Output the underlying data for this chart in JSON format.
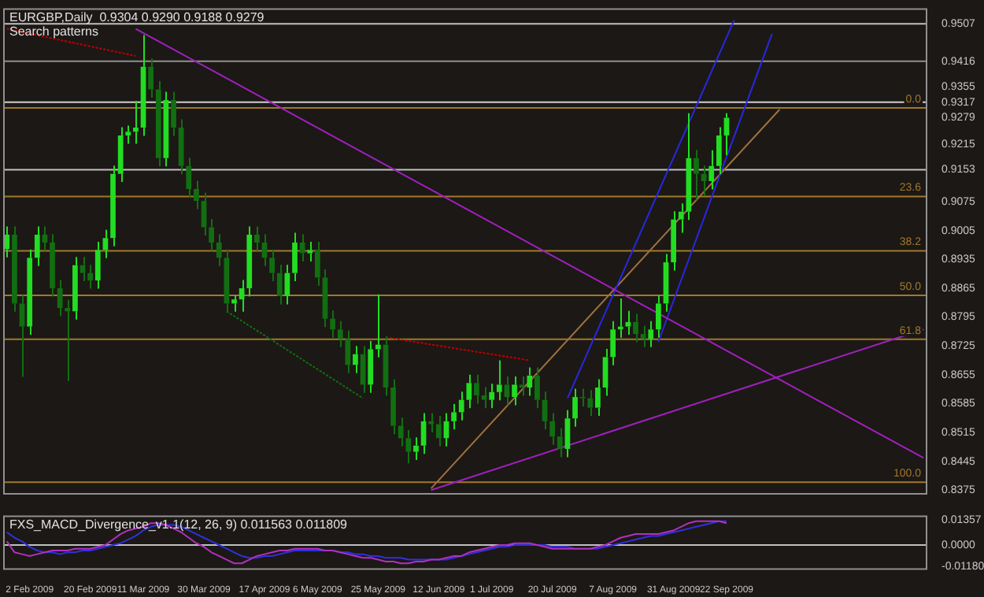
{
  "chart_data": [
    {
      "type": "candlestick",
      "title": "EURGBP,Daily  0.9304 0.9290 0.9188 0.9279",
      "subtitle": "Search patterns",
      "colors": [
        "#22dd22",
        "#116f11",
        "#116f11",
        "#22dd22",
        "#22dd22",
        "#116f11",
        "#116f11",
        "#116f11",
        "#116f11",
        "#22dd22",
        "#116f11",
        "#116f11",
        "#22dd22",
        "#22dd22",
        "#22dd22",
        "#22dd22",
        "#22dd22",
        "#22dd22",
        "#22dd22",
        "#116f11",
        "#116f11",
        "#22dd22",
        "#116f11",
        "#116f11",
        "#116f11",
        "#116f11",
        "#116f11",
        "#116f11",
        "#116f11",
        "#116f11",
        "#22dd22",
        "#22dd22",
        "#22dd22",
        "#116f11",
        "#116f11",
        "#116f11",
        "#116f11",
        "#22dd22",
        "#22dd22",
        "#116f11",
        "#22dd22",
        "#116f11",
        "#116f11",
        "#116f11",
        "#116f11",
        "#116f11",
        "#22dd22",
        "#116f11",
        "#22dd22",
        "#22dd22",
        "#116f11",
        "#116f11",
        "#116f11",
        "#116f11",
        "#22dd22",
        "#22dd22",
        "#116f11",
        "#116f11",
        "#22dd22",
        "#22dd22",
        "#22dd22",
        "#22dd22",
        "#116f11",
        "#116f11",
        "#22dd22",
        "#22dd22",
        "#116f11",
        "#22dd22",
        "#116f11",
        "#22dd22",
        "#116f11",
        "#116f11",
        "#116f11",
        "#116f11",
        "#22dd22",
        "#22dd22",
        "#116f11",
        "#116f11",
        "#22dd22",
        "#22dd22",
        "#22dd22",
        "#22dd22",
        "#22dd22",
        "#116f11",
        "#116f11",
        "#22dd22",
        "#22dd22",
        "#22dd22",
        "#22dd22",
        "#22dd22",
        "#22dd22",
        "#116f11",
        "#116f11",
        "#22dd22",
        "#22dd22",
        "#22dd22",
        null,
        null,
        null,
        null,
        null,
        null,
        null,
        null,
        null,
        null,
        null,
        null,
        null,
        null,
        null,
        null,
        null,
        null,
        null,
        null,
        null,
        null,
        null,
        null,
        null,
        null
      ],
      "tick_labels": "y",
      "ylim": [
        0.8364,
        0.9545
      ],
      "yticks": [
        0.8375,
        0.8445,
        0.8515,
        0.8585,
        0.8655,
        0.8725,
        0.8795,
        0.8865,
        0.8935,
        0.9005,
        0.9075,
        0.9153,
        0.9215,
        0.9279,
        0.9317,
        0.9355,
        0.9416,
        0.9507
      ],
      "ohlc": [
        [
          0.896,
          0.9015,
          0.894,
          0.8995
        ],
        [
          0.8995,
          0.9015,
          0.8808,
          0.8828
        ],
        [
          0.8828,
          0.8848,
          0.865,
          0.8772
        ],
        [
          0.8772,
          0.8959,
          0.8752,
          0.8939
        ],
        [
          0.8939,
          0.9015,
          0.8919,
          0.8995
        ],
        [
          0.8995,
          0.9015,
          0.8956,
          0.8976
        ],
        [
          0.8976,
          0.8996,
          0.8845,
          0.8865
        ],
        [
          0.8865,
          0.8885,
          0.8797,
          0.8817
        ],
        [
          0.8817,
          0.8837,
          0.864,
          0.8809
        ],
        [
          0.8809,
          0.8941,
          0.8789,
          0.8921
        ],
        [
          0.8921,
          0.8941,
          0.8882,
          0.8902
        ],
        [
          0.8902,
          0.8922,
          0.8864,
          0.8884
        ],
        [
          0.8884,
          0.8978,
          0.8864,
          0.8958
        ],
        [
          0.8958,
          0.9007,
          0.8938,
          0.8987
        ],
        [
          0.8987,
          0.9163,
          0.8967,
          0.9143
        ],
        [
          0.9143,
          0.9256,
          0.9123,
          0.9236
        ],
        [
          0.9236,
          0.926,
          0.9216,
          0.9245
        ],
        [
          0.9245,
          0.932,
          0.9216,
          0.9255
        ],
        [
          0.9255,
          0.948,
          0.9235,
          0.9403
        ],
        [
          0.9403,
          0.9423,
          0.9328,
          0.9348
        ],
        [
          0.9348,
          0.9368,
          0.9161,
          0.9181
        ],
        [
          0.9181,
          0.9342,
          0.9161,
          0.9322
        ],
        [
          0.9322,
          0.9342,
          0.9235,
          0.9255
        ],
        [
          0.9255,
          0.9275,
          0.9142,
          0.9162
        ],
        [
          0.9162,
          0.9182,
          0.9086,
          0.9106
        ],
        [
          0.9106,
          0.9126,
          0.9057,
          0.9077
        ],
        [
          0.9077,
          0.9097,
          0.8993,
          0.9013
        ],
        [
          0.9013,
          0.9033,
          0.8956,
          0.8976
        ],
        [
          0.8976,
          0.8996,
          0.8919,
          0.8939
        ],
        [
          0.8939,
          0.8959,
          0.8808,
          0.8828
        ],
        [
          0.8828,
          0.8848,
          0.8808,
          0.8838
        ],
        [
          0.8838,
          0.8885,
          0.8808,
          0.8865
        ],
        [
          0.8865,
          0.9015,
          0.8845,
          0.8995
        ],
        [
          0.8995,
          0.9015,
          0.8956,
          0.8976
        ],
        [
          0.8976,
          0.8996,
          0.8919,
          0.8939
        ],
        [
          0.8939,
          0.8959,
          0.8882,
          0.8902
        ],
        [
          0.8902,
          0.8922,
          0.8826,
          0.8846
        ],
        [
          0.8846,
          0.8922,
          0.8826,
          0.8902
        ],
        [
          0.8902,
          0.9,
          0.8882,
          0.8976
        ],
        [
          0.8976,
          0.8996,
          0.893,
          0.895
        ],
        [
          0.895,
          0.8978,
          0.893,
          0.8958
        ],
        [
          0.8958,
          0.8978,
          0.8871,
          0.8891
        ],
        [
          0.8891,
          0.8911,
          0.8771,
          0.8791
        ],
        [
          0.8791,
          0.8811,
          0.8745,
          0.8765
        ],
        [
          0.8765,
          0.8785,
          0.8722,
          0.8742
        ],
        [
          0.8742,
          0.8762,
          0.8659,
          0.8679
        ],
        [
          0.8679,
          0.8725,
          0.8659,
          0.8705
        ],
        [
          0.8705,
          0.8725,
          0.8611,
          0.8631
        ],
        [
          0.8631,
          0.8737,
          0.8611,
          0.8717
        ],
        [
          0.8717,
          0.885,
          0.8697,
          0.8728
        ],
        [
          0.8728,
          0.8748,
          0.8604,
          0.8624
        ],
        [
          0.8624,
          0.8644,
          0.8511,
          0.8531
        ],
        [
          0.8531,
          0.8551,
          0.8481,
          0.8501
        ],
        [
          0.8501,
          0.8521,
          0.844,
          0.8468
        ],
        [
          0.8468,
          0.8503,
          0.8448,
          0.8483
        ],
        [
          0.8483,
          0.8562,
          0.8463,
          0.8542
        ],
        [
          0.8542,
          0.8562,
          0.8515,
          0.8535
        ],
        [
          0.8535,
          0.8555,
          0.8481,
          0.8501
        ],
        [
          0.8501,
          0.8562,
          0.8481,
          0.8542
        ],
        [
          0.8542,
          0.8584,
          0.8522,
          0.8564
        ],
        [
          0.8564,
          0.8614,
          0.8544,
          0.8594
        ],
        [
          0.8594,
          0.8655,
          0.8574,
          0.8635
        ],
        [
          0.8635,
          0.8655,
          0.8585,
          0.8605
        ],
        [
          0.8605,
          0.8625,
          0.8574,
          0.8594
        ],
        [
          0.8594,
          0.8633,
          0.8574,
          0.8613
        ],
        [
          0.8613,
          0.869,
          0.8593,
          0.8631
        ],
        [
          0.8631,
          0.8651,
          0.8581,
          0.8601
        ],
        [
          0.8601,
          0.8651,
          0.8581,
          0.8631
        ],
        [
          0.8631,
          0.8651,
          0.8604,
          0.8624
        ],
        [
          0.8624,
          0.8673,
          0.8604,
          0.8653
        ],
        [
          0.8653,
          0.8673,
          0.8574,
          0.8594
        ],
        [
          0.8594,
          0.8614,
          0.8522,
          0.8542
        ],
        [
          0.8542,
          0.8562,
          0.8485,
          0.8505
        ],
        [
          0.8505,
          0.8525,
          0.8455,
          0.8475
        ],
        [
          0.8475,
          0.8569,
          0.8455,
          0.8549
        ],
        [
          0.8549,
          0.8621,
          0.8529,
          0.8601
        ],
        [
          0.8601,
          0.8621,
          0.8578,
          0.8598
        ],
        [
          0.8598,
          0.8618,
          0.8555,
          0.8575
        ],
        [
          0.8575,
          0.8644,
          0.8555,
          0.8624
        ],
        [
          0.8624,
          0.8718,
          0.8604,
          0.8698
        ],
        [
          0.8698,
          0.8785,
          0.8678,
          0.8765
        ],
        [
          0.8765,
          0.884,
          0.8745,
          0.8772
        ],
        [
          0.8772,
          0.881,
          0.8752,
          0.8783
        ],
        [
          0.8783,
          0.8803,
          0.8734,
          0.8754
        ],
        [
          0.8754,
          0.8774,
          0.8722,
          0.8742
        ],
        [
          0.8742,
          0.8785,
          0.8722,
          0.8765
        ],
        [
          0.8765,
          0.8848,
          0.8745,
          0.8828
        ],
        [
          0.8828,
          0.8948,
          0.8808,
          0.8928
        ],
        [
          0.8928,
          0.9052,
          0.8908,
          0.9032
        ],
        [
          0.9032,
          0.9071,
          0.9,
          0.9051
        ],
        [
          0.9051,
          0.929,
          0.9031,
          0.9181
        ],
        [
          0.9181,
          0.9201,
          0.908,
          0.9143
        ],
        [
          0.9143,
          0.9163,
          0.909,
          0.9125
        ],
        [
          0.9125,
          0.92,
          0.9105,
          0.9162
        ],
        [
          0.9162,
          0.9256,
          0.9142,
          0.9236
        ],
        [
          0.9236,
          0.929,
          0.9188,
          0.9279
        ],
        null,
        null,
        null,
        null,
        null,
        null,
        null,
        null,
        null,
        null,
        null,
        null,
        null,
        null,
        null,
        null,
        null,
        null,
        null,
        null,
        null,
        null,
        null,
        null,
        null,
        null
      ],
      "series": [
        {
          "type": "line",
          "color": "#a020c0",
          "values": [
            null,
            null,
            null,
            null,
            null,
            null,
            null,
            null,
            null,
            null,
            null,
            null,
            null,
            null,
            null,
            null,
            null,
            0.9495,
            null,
            null,
            null,
            null,
            null,
            null,
            null,
            null,
            null,
            null,
            null,
            null,
            null,
            null,
            null,
            null,
            null,
            null,
            null,
            null,
            null,
            null,
            null,
            null,
            null,
            null,
            null,
            null,
            null,
            null,
            null,
            null,
            null,
            null,
            null,
            null,
            null,
            null,
            null,
            null,
            null,
            null,
            null,
            null,
            null,
            null,
            null,
            null,
            null,
            null,
            null,
            null,
            null,
            null,
            null,
            null,
            null,
            null,
            null,
            null,
            null,
            null,
            null,
            null,
            null,
            null,
            null,
            null,
            null,
            null,
            null,
            null,
            null,
            null,
            null,
            null,
            null,
            null,
            null,
            null,
            null,
            null,
            null,
            null,
            null,
            null,
            null,
            null,
            null,
            null,
            null,
            null,
            null,
            null,
            null,
            null,
            null,
            null,
            null,
            null,
            null,
            null,
            null,
            0.8453
          ]
        },
        {
          "type": "line",
          "color": "#a020c0",
          "values": [
            null,
            null,
            null,
            null,
            null,
            null,
            null,
            null,
            null,
            null,
            null,
            null,
            null,
            null,
            null,
            null,
            null,
            null,
            null,
            null,
            null,
            null,
            null,
            null,
            null,
            null,
            null,
            null,
            null,
            null,
            null,
            null,
            null,
            null,
            null,
            null,
            null,
            null,
            null,
            null,
            null,
            null,
            null,
            null,
            null,
            null,
            null,
            null,
            null,
            null,
            null,
            null,
            null,
            null,
            null,
            null,
            0.8375,
            null,
            null,
            null,
            null,
            null,
            null,
            null,
            null,
            null,
            null,
            null,
            null,
            null,
            null,
            null,
            null,
            null,
            null,
            null,
            null,
            null,
            null,
            null,
            null,
            null,
            null,
            null,
            null,
            null,
            null,
            null,
            null,
            null,
            null,
            null,
            null,
            null,
            null,
            null,
            null,
            null,
            null,
            null,
            null,
            null,
            null,
            null,
            null,
            null,
            null,
            null,
            null,
            null,
            null,
            null,
            null,
            null,
            null,
            null,
            null,
            null,
            null,
            null,
            null,
            0.8765
          ]
        },
        {
          "type": "line",
          "color": "#2828e0",
          "values": [
            null,
            null,
            null,
            null,
            null,
            null,
            null,
            null,
            null,
            null,
            null,
            null,
            null,
            null,
            null,
            null,
            null,
            null,
            null,
            null,
            null,
            null,
            null,
            null,
            null,
            null,
            null,
            null,
            null,
            null,
            null,
            null,
            null,
            null,
            null,
            null,
            null,
            null,
            null,
            null,
            null,
            null,
            null,
            null,
            null,
            null,
            null,
            null,
            null,
            null,
            null,
            null,
            null,
            null,
            null,
            null,
            null,
            null,
            null,
            null,
            null,
            null,
            null,
            null,
            null,
            null,
            null,
            null,
            null,
            null,
            null,
            null,
            null,
            null,
            0.8598,
            null,
            null,
            null,
            null,
            null,
            null,
            null,
            null,
            null,
            null,
            null,
            null,
            null,
            null,
            null,
            null,
            null,
            null,
            null,
            null,
            null,
            0.9516,
            null,
            null,
            null,
            null,
            null,
            null,
            null,
            null,
            null,
            null,
            null,
            null,
            null,
            null,
            null,
            null,
            null,
            null,
            null,
            null,
            null,
            null,
            null,
            null,
            null
          ]
        },
        {
          "type": "line",
          "color": "#2828e0",
          "values": [
            null,
            null,
            null,
            null,
            null,
            null,
            null,
            null,
            null,
            null,
            null,
            null,
            null,
            null,
            null,
            null,
            null,
            null,
            null,
            null,
            null,
            null,
            null,
            null,
            null,
            null,
            null,
            null,
            null,
            null,
            null,
            null,
            null,
            null,
            null,
            null,
            null,
            null,
            null,
            null,
            null,
            null,
            null,
            null,
            null,
            null,
            null,
            null,
            null,
            null,
            null,
            null,
            null,
            null,
            null,
            null,
            null,
            null,
            null,
            null,
            null,
            null,
            null,
            null,
            null,
            null,
            null,
            null,
            null,
            null,
            null,
            null,
            null,
            null,
            null,
            null,
            null,
            null,
            null,
            null,
            null,
            null,
            null,
            null,
            null,
            null,
            0.8735,
            null,
            null,
            null,
            null,
            null,
            null,
            null,
            null,
            null,
            null,
            null,
            null,
            null,
            null,
            0.9483,
            null,
            null,
            null,
            null,
            null,
            null,
            null,
            null,
            null,
            null,
            null,
            null,
            null,
            null,
            null,
            null,
            null,
            null,
            null,
            null
          ]
        },
        {
          "type": "line",
          "color": "#a07040",
          "values": [
            null,
            null,
            null,
            null,
            null,
            null,
            null,
            null,
            null,
            null,
            null,
            null,
            null,
            null,
            null,
            null,
            null,
            null,
            null,
            null,
            null,
            null,
            null,
            null,
            null,
            null,
            null,
            null,
            null,
            null,
            null,
            null,
            null,
            null,
            null,
            null,
            null,
            null,
            null,
            null,
            null,
            null,
            null,
            null,
            null,
            null,
            null,
            null,
            null,
            null,
            null,
            null,
            null,
            null,
            null,
            null,
            0.8379,
            null,
            null,
            null,
            null,
            null,
            null,
            null,
            null,
            null,
            null,
            null,
            null,
            null,
            null,
            null,
            null,
            null,
            null,
            null,
            null,
            null,
            null,
            null,
            null,
            null,
            null,
            null,
            null,
            null,
            null,
            null,
            null,
            null,
            null,
            null,
            null,
            null,
            null,
            null,
            null,
            null,
            null,
            null,
            null,
            null,
            0.9299,
            null,
            null,
            null,
            null,
            null,
            null,
            null,
            null,
            null,
            null,
            null,
            null,
            null,
            null,
            null,
            null,
            null,
            null,
            null
          ]
        },
        {
          "type": "line",
          "color": "#c00000",
          "line_style": "dotted",
          "values": [
            0.9495,
            null,
            null,
            null,
            null,
            null,
            null,
            null,
            null,
            null,
            null,
            null,
            null,
            null,
            null,
            null,
            null,
            0.9429,
            null,
            null,
            null,
            null,
            null,
            null,
            null,
            null,
            null,
            null,
            null,
            null,
            null,
            null,
            null,
            null,
            null,
            null,
            null,
            null,
            null,
            null,
            null,
            null,
            null,
            null,
            null,
            null,
            null,
            null,
            null,
            null,
            null,
            null,
            null,
            null,
            null,
            null,
            null,
            null,
            null,
            null,
            null,
            null,
            null,
            null,
            null,
            null,
            null,
            null,
            null,
            null,
            null,
            null,
            null,
            null,
            null,
            null,
            null,
            null,
            null,
            null,
            null,
            null,
            null,
            null,
            null,
            null,
            null,
            null,
            null,
            null,
            null,
            null,
            null,
            null,
            null,
            null,
            null,
            null,
            null,
            null,
            null,
            null,
            null,
            null,
            null,
            null,
            null,
            null,
            null,
            null,
            null,
            null,
            null,
            null,
            null,
            null,
            null,
            null,
            null,
            null,
            null,
            null
          ]
        },
        {
          "type": "line",
          "color": "#c00000",
          "line_style": "dotted",
          "values": [
            null,
            null,
            null,
            null,
            null,
            null,
            null,
            null,
            null,
            null,
            null,
            null,
            null,
            null,
            null,
            null,
            null,
            null,
            null,
            null,
            null,
            null,
            null,
            null,
            null,
            null,
            null,
            null,
            null,
            null,
            null,
            null,
            null,
            null,
            null,
            null,
            null,
            null,
            null,
            null,
            null,
            null,
            null,
            null,
            null,
            null,
            null,
            null,
            null,
            null,
            0.8746,
            null,
            null,
            null,
            null,
            null,
            null,
            null,
            null,
            null,
            null,
            null,
            null,
            null,
            null,
            null,
            null,
            null,
            null,
            0.869,
            null,
            null,
            null,
            null,
            null,
            null,
            null,
            null,
            null,
            null,
            null,
            null,
            null,
            null,
            null,
            null,
            null,
            null,
            null,
            null,
            null,
            null,
            null,
            null,
            null,
            null,
            null,
            null,
            null,
            null,
            null,
            null,
            null,
            null,
            null,
            null,
            null,
            null,
            null,
            null,
            null,
            null,
            null,
            null,
            null,
            null,
            null,
            null,
            null,
            null,
            null,
            null
          ]
        },
        {
          "type": "line",
          "color": "#107010",
          "line_style": "dotted",
          "values": [
            null,
            null,
            null,
            null,
            null,
            null,
            null,
            null,
            null,
            null,
            null,
            null,
            null,
            null,
            null,
            null,
            null,
            null,
            null,
            null,
            null,
            null,
            null,
            null,
            null,
            null,
            null,
            null,
            null,
            0.8809,
            null,
            null,
            null,
            null,
            null,
            null,
            null,
            null,
            null,
            null,
            null,
            null,
            null,
            null,
            null,
            null,
            null,
            0.8598,
            null,
            null,
            null,
            null,
            null,
            null,
            null,
            null,
            null,
            null,
            null,
            null,
            null,
            null,
            null,
            null,
            null,
            null,
            null,
            null,
            null,
            null,
            null,
            null,
            null,
            null,
            null,
            null,
            null,
            null,
            null,
            null,
            null,
            null,
            null,
            null,
            null,
            null,
            null,
            null,
            null,
            null,
            null,
            null,
            null,
            null,
            null,
            null,
            null,
            null,
            null,
            null,
            null,
            null,
            null,
            null,
            null,
            null,
            null,
            null,
            null,
            null,
            null,
            null,
            null,
            null,
            null,
            null,
            null,
            null,
            null,
            null,
            null,
            null
          ]
        }
      ],
      "ref_lines": [
        {
          "axis": "y",
          "value": 0.9507,
          "color": "#c0c0c0"
        },
        {
          "axis": "y",
          "value": 0.9416,
          "color": "#909090"
        },
        {
          "axis": "y",
          "value": 0.9317,
          "color": "#d0d0d0"
        },
        {
          "axis": "y",
          "value": 0.9153,
          "color": "#c0c0c0"
        },
        {
          "axis": "y",
          "value": 0.9303,
          "color": "#a0782c"
        },
        {
          "axis": "y",
          "value": 0.9088,
          "color": "#a0782c"
        },
        {
          "axis": "y",
          "value": 0.8956,
          "color": "#a0782c"
        },
        {
          "axis": "y",
          "value": 0.8848,
          "color": "#a0782c"
        },
        {
          "axis": "y",
          "value": 0.8741,
          "color": "#a0782c"
        },
        {
          "axis": "y",
          "value": 0.8394,
          "color": "#a0782c"
        }
      ],
      "annotations": [
        {
          "text": "0.0",
          "y": 0.9303
        },
        {
          "text": "23.6",
          "y": 0.9088
        },
        {
          "text": "38.2",
          "y": 0.8956
        },
        {
          "text": "50.0",
          "y": 0.8848
        },
        {
          "text": "61.8",
          "y": 0.8741
        },
        {
          "text": "100.0",
          "y": 0.8394
        }
      ],
      "legend": false,
      "grid": false
    },
    {
      "type": "line",
      "title": "FXS_MACD_Divergence_v1.1(12, 26, 9) 0.011563 0.011809",
      "ylim": [
        -0.0136,
        0.0162
      ],
      "yticks": [
        0.01357,
        {
          "value": 0,
          "label": "0.0000"
        },
        {
          "value": -0.0118,
          "label": "-0.01180"
        }
      ],
      "categories": [
        null,
        null,
        null,
        "2 Feb 2009",
        null,
        null,
        null,
        null,
        null,
        null,
        null,
        "20 Feb 2009",
        null,
        null,
        null,
        null,
        null,
        null,
        "11 Mar 2009",
        null,
        null,
        null,
        null,
        null,
        null,
        null,
        "30 Mar 2009",
        null,
        null,
        null,
        null,
        null,
        null,
        null,
        "17 Apr 2009",
        null,
        null,
        null,
        null,
        null,
        null,
        "6 May 2009",
        null,
        null,
        null,
        null,
        null,
        null,
        null,
        "25 May 2009",
        null,
        null,
        null,
        null,
        null,
        null,
        null,
        "12 Jun 2009",
        null,
        null,
        null,
        null,
        null,
        null,
        "1 Jul 2009",
        null,
        null,
        null,
        null,
        null,
        null,
        null,
        "20 Jul 2009",
        null,
        null,
        null,
        null,
        null,
        null,
        null,
        "7 Aug 2009",
        null,
        null,
        null,
        null,
        null,
        null,
        null,
        "31 Aug 2009",
        null,
        null,
        null,
        null,
        null,
        null,
        "22 Sep 2009",
        null,
        null,
        null,
        null,
        null,
        null,
        null,
        null,
        null,
        null,
        null,
        null,
        null,
        null,
        null,
        null,
        null,
        null,
        null,
        null,
        null,
        null,
        null,
        null,
        null,
        null
      ],
      "series": [
        {
          "color": "#b030c0",
          "values": [
            0.002,
            -0.004,
            -0.005,
            -0.006,
            -0.005,
            -0.004,
            -0.003,
            -0.003,
            -0.003,
            -0.002,
            -0.002,
            -0.002,
            -0.001,
            0.0,
            0.003,
            0.006,
            0.008,
            0.009,
            0.01,
            0.012,
            0.012,
            0.011,
            0.009,
            0.007,
            0.004,
            0.001,
            -0.001,
            -0.004,
            -0.006,
            -0.008,
            -0.01,
            -0.01,
            -0.008,
            -0.006,
            -0.005,
            -0.004,
            -0.003,
            -0.003,
            -0.002,
            -0.002,
            -0.002,
            -0.002,
            -0.003,
            -0.003,
            -0.004,
            -0.005,
            -0.006,
            -0.007,
            -0.007,
            -0.008,
            -0.009,
            -0.009,
            -0.01,
            -0.01,
            -0.009,
            -0.009,
            -0.008,
            -0.008,
            -0.007,
            -0.006,
            -0.006,
            -0.004,
            -0.003,
            -0.002,
            -0.001,
            0.0,
            0.0,
            0.001,
            0.001,
            0.001,
            0.0,
            -0.001,
            -0.002,
            -0.002,
            -0.002,
            -0.002,
            -0.002,
            -0.002,
            -0.001,
            0.0,
            0.002,
            0.004,
            0.005,
            0.006,
            0.006,
            0.006,
            0.006,
            0.007,
            0.008,
            0.01,
            0.012,
            0.013,
            0.013,
            0.013,
            0.013,
            0.012,
            null,
            null,
            null,
            null,
            null,
            null,
            null,
            null,
            null,
            null,
            null,
            null,
            null,
            null,
            null,
            null,
            null,
            null,
            null,
            null,
            null,
            null,
            null,
            null,
            null,
            null
          ]
        },
        {
          "color": "#3030e0",
          "values": [
            0.007,
            0.004,
            0.002,
            -0.001,
            -0.003,
            -0.004,
            -0.004,
            -0.005,
            -0.004,
            -0.004,
            -0.003,
            -0.003,
            -0.002,
            -0.001,
            0.0,
            0.001,
            0.003,
            0.005,
            0.008,
            0.01,
            0.011,
            0.011,
            0.011,
            0.01,
            0.008,
            0.006,
            0.004,
            0.002,
            0.0,
            -0.002,
            -0.004,
            -0.006,
            -0.007,
            -0.007,
            -0.006,
            -0.006,
            -0.005,
            -0.004,
            -0.003,
            -0.003,
            -0.003,
            -0.003,
            -0.003,
            -0.003,
            -0.004,
            -0.004,
            -0.005,
            -0.005,
            -0.006,
            -0.006,
            -0.007,
            -0.007,
            -0.007,
            -0.008,
            -0.008,
            -0.008,
            -0.008,
            -0.008,
            -0.008,
            -0.007,
            -0.006,
            -0.005,
            -0.004,
            -0.003,
            -0.002,
            -0.001,
            -0.001,
            0.0,
            0.0,
            0.0,
            0.0,
            0.0,
            -0.001,
            -0.001,
            -0.001,
            -0.002,
            -0.002,
            -0.002,
            -0.002,
            -0.001,
            0.0,
            0.001,
            0.002,
            0.003,
            0.004,
            0.005,
            0.005,
            0.006,
            0.007,
            0.008,
            0.009,
            0.01,
            0.011,
            0.012,
            0.013,
            0.013,
            null,
            null,
            null,
            null,
            null,
            null,
            null,
            null,
            null,
            null,
            null,
            null,
            null,
            null,
            null,
            null,
            null,
            null,
            null,
            null,
            null,
            null,
            null,
            null,
            null,
            null
          ]
        }
      ],
      "ref_lines": [
        {
          "axis": "y",
          "value": 0,
          "color": "#c0c0c0"
        }
      ],
      "legend": false,
      "grid": false
    }
  ]
}
